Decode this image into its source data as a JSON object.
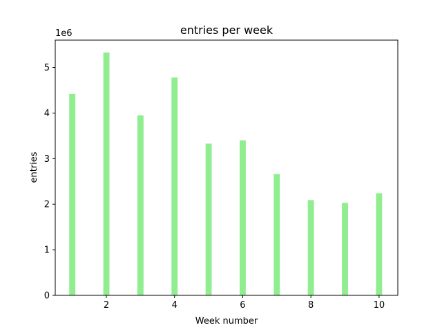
{
  "chart_data": {
    "type": "bar",
    "title": "entries per week",
    "xlabel": "Week number",
    "ylabel": "entries",
    "y_offset_label": "1e6",
    "x": [
      1,
      2,
      3,
      4,
      5,
      6,
      7,
      8,
      9,
      10
    ],
    "values": [
      4420000,
      5330000,
      3950000,
      4780000,
      3330000,
      3400000,
      2660000,
      2090000,
      2030000,
      2240000
    ],
    "bar_color": "#90ee90",
    "xlim": [
      0.5,
      10.55
    ],
    "ylim": [
      0,
      5600000
    ],
    "x_ticks": [
      2,
      4,
      6,
      8,
      10
    ],
    "y_ticks": [
      0,
      1000000,
      2000000,
      3000000,
      4000000,
      5000000
    ],
    "y_tick_labels": [
      "0",
      "1",
      "2",
      "3",
      "4",
      "5"
    ],
    "grid": false
  }
}
